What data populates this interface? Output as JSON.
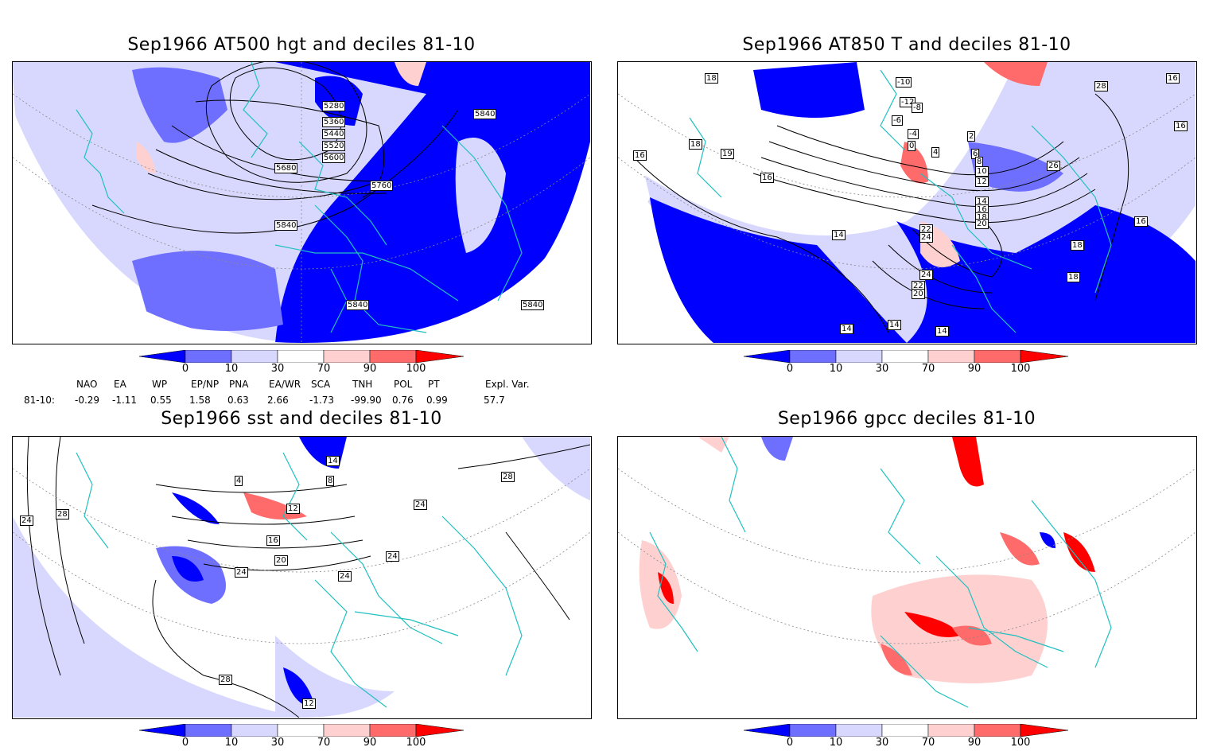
{
  "panels": [
    {
      "title": "Sep1966 AT500 hgt and deciles 81-10",
      "contour_labels": [
        "5280",
        "5360",
        "5440",
        "5520",
        "5600",
        "5680",
        "5760",
        "5840",
        "5840",
        "5840",
        "5840"
      ]
    },
    {
      "title": "Sep1966 AT850 T and deciles 81-10",
      "contour_labels": [
        "18",
        "16",
        "18",
        "19",
        "16",
        "14",
        "-10",
        "-12",
        "-8",
        "-6",
        "-4",
        "0",
        "2",
        "4",
        "6",
        "8",
        "10",
        "12",
        "14",
        "16",
        "18",
        "20",
        "22",
        "24",
        "26",
        "28",
        "16",
        "16",
        "18",
        "18",
        "16",
        "14",
        "14",
        "14",
        "24",
        "22",
        "20"
      ]
    },
    {
      "title": "Sep1966 sst and deciles 81-10",
      "contour_labels": [
        "24",
        "28",
        "4",
        "8",
        "12",
        "16",
        "20",
        "24",
        "24",
        "24",
        "28",
        "28",
        "24",
        "12",
        "14"
      ]
    },
    {
      "title": "Sep1966 gpcc deciles 81-10",
      "contour_labels": []
    }
  ],
  "colorbar": {
    "labels": [
      "0",
      "10",
      "30",
      "70",
      "90",
      "100"
    ],
    "colors": [
      "#0000ff",
      "#6f6fff",
      "#d8d8ff",
      "#ffffff",
      "#ffd0d0",
      "#ff6a6a",
      "#ff0000"
    ]
  },
  "indices": {
    "row_label": "81-10:",
    "names": [
      "NAO",
      "EA",
      "WP",
      "EP/NP",
      "PNA",
      "EA/WR",
      "SCA",
      "TNH",
      "POL",
      "PT",
      "Expl. Var."
    ],
    "values": [
      "-0.29",
      "-1.11",
      "0.55",
      "1.58",
      "0.63",
      "2.66",
      "-1.73",
      "-99.90",
      "0.76",
      "0.99",
      "57.7"
    ]
  },
  "colors": {
    "coast": "#20c0c0",
    "contour": "#000000"
  }
}
